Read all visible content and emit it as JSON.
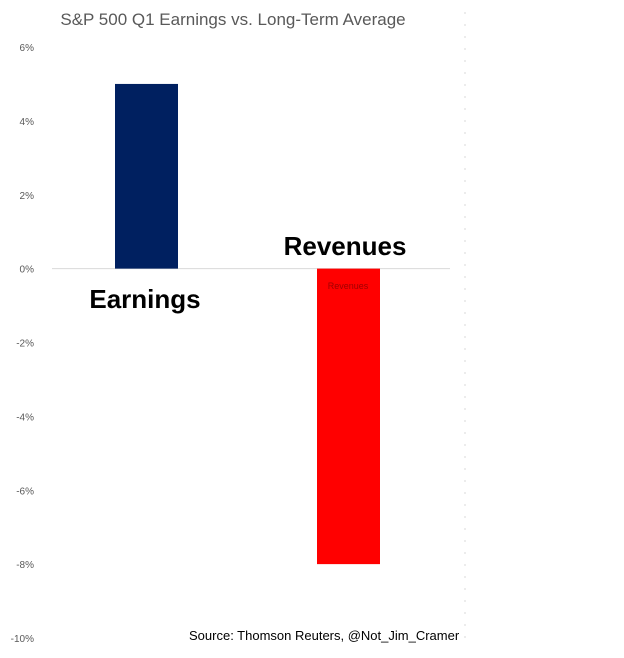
{
  "chart_data": {
    "type": "bar",
    "title": "S&P 500 Q1 Earnings vs. Long-Term Average",
    "source": "Source: Thomson Reuters, @Not_Jim_Cramer",
    "categories": [
      "Earnings",
      "Revenues"
    ],
    "values": [
      5.0,
      -8.0
    ],
    "bar_colors": [
      "#002060",
      "#ff0000"
    ],
    "category_labels": [
      "Earnings",
      "Revenues"
    ],
    "small_data_label": "Revenues",
    "yticks": [
      "6%",
      "4%",
      "2%",
      "0%",
      "-2%",
      "-4%",
      "-6%",
      "-8%",
      "-10%"
    ],
    "ytick_values": [
      6,
      4,
      2,
      0,
      -2,
      -4,
      -6,
      -8,
      -10
    ],
    "ylim": [
      -10,
      6
    ],
    "xlabel": "",
    "ylabel": "",
    "grid": false,
    "legend": "none"
  }
}
